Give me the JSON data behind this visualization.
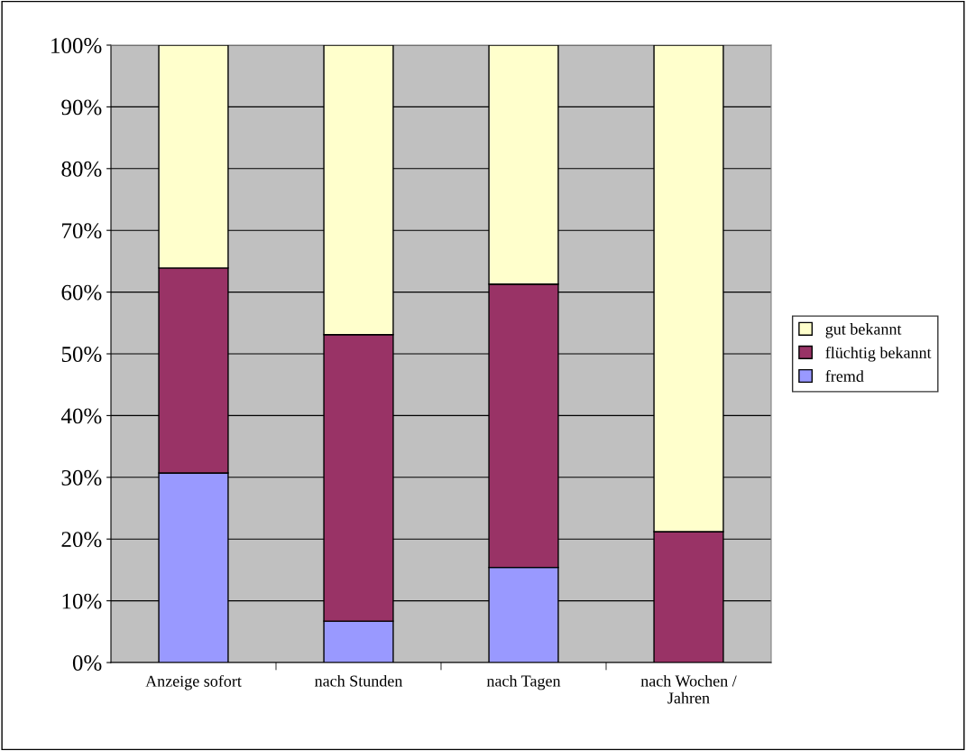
{
  "chart_data": {
    "type": "bar",
    "stacked": true,
    "categories": [
      "Anzeige sofort",
      "nach Stunden",
      "nach Tagen",
      "nach Wochen /\nJahren"
    ],
    "series": [
      {
        "name": "fremd",
        "color": "#9999ff",
        "values": [
          30.7,
          6.7,
          15.4,
          0
        ]
      },
      {
        "name": "flüchtig bekannt",
        "color": "#993366",
        "values": [
          33.2,
          46.4,
          45.9,
          21.2
        ]
      },
      {
        "name": "gut bekannt",
        "color": "#ffffcc",
        "values": [
          36.1,
          46.9,
          38.7,
          78.8
        ]
      }
    ],
    "ylim": [
      0,
      100
    ],
    "yticks": [
      {
        "value": 0,
        "label": "0%"
      },
      {
        "value": 10,
        "label": "10%"
      },
      {
        "value": 20,
        "label": "20%"
      },
      {
        "value": 30,
        "label": "30%"
      },
      {
        "value": 40,
        "label": "40%"
      },
      {
        "value": 50,
        "label": "50%"
      },
      {
        "value": 60,
        "label": "60%"
      },
      {
        "value": 70,
        "label": "70%"
      },
      {
        "value": 80,
        "label": "80%"
      },
      {
        "value": 90,
        "label": "90%"
      },
      {
        "value": 100,
        "label": "100%"
      }
    ],
    "grid": "y",
    "legend": "right"
  }
}
